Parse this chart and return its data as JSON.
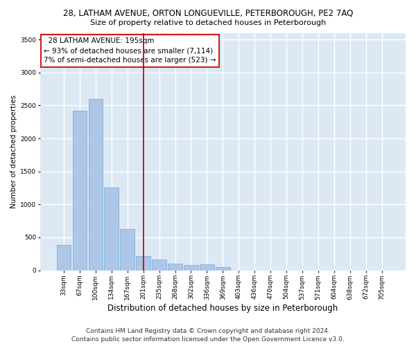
{
  "title1": "28, LATHAM AVENUE, ORTON LONGUEVILLE, PETERBOROUGH, PE2 7AQ",
  "title2": "Size of property relative to detached houses in Peterborough",
  "xlabel": "Distribution of detached houses by size in Peterborough",
  "ylabel": "Number of detached properties",
  "footer1": "Contains HM Land Registry data © Crown copyright and database right 2024.",
  "footer2": "Contains public sector information licensed under the Open Government Licence v3.0.",
  "annotation_line1": "  28 LATHAM AVENUE: 195sqm  ",
  "annotation_line2": "← 93% of detached houses are smaller (7,114)",
  "annotation_line3": "7% of semi-detached houses are larger (523) →",
  "bar_color": "#aec6e8",
  "bar_edge_color": "#6aaad4",
  "vline_color": "#cc0000",
  "annotation_box_color": "#ffffff",
  "annotation_box_edge": "#cc0000",
  "bg_color": "#dce9f5",
  "fig_bg_color": "#ffffff",
  "categories": [
    "33sqm",
    "67sqm",
    "100sqm",
    "134sqm",
    "167sqm",
    "201sqm",
    "235sqm",
    "268sqm",
    "302sqm",
    "336sqm",
    "369sqm",
    "403sqm",
    "436sqm",
    "470sqm",
    "504sqm",
    "537sqm",
    "571sqm",
    "604sqm",
    "638sqm",
    "672sqm",
    "705sqm"
  ],
  "values": [
    380,
    2420,
    2600,
    1250,
    630,
    220,
    160,
    100,
    80,
    95,
    50,
    0,
    0,
    0,
    0,
    0,
    0,
    0,
    0,
    0,
    0
  ],
  "ylim": [
    0,
    3600
  ],
  "yticks": [
    0,
    500,
    1000,
    1500,
    2000,
    2500,
    3000,
    3500
  ],
  "grid_color": "#ffffff",
  "vline_x_index": 5.0,
  "title1_fontsize": 8.5,
  "title2_fontsize": 8.0,
  "ylabel_fontsize": 7.5,
  "xlabel_fontsize": 8.5,
  "tick_fontsize": 6.5,
  "footer_fontsize": 6.5
}
